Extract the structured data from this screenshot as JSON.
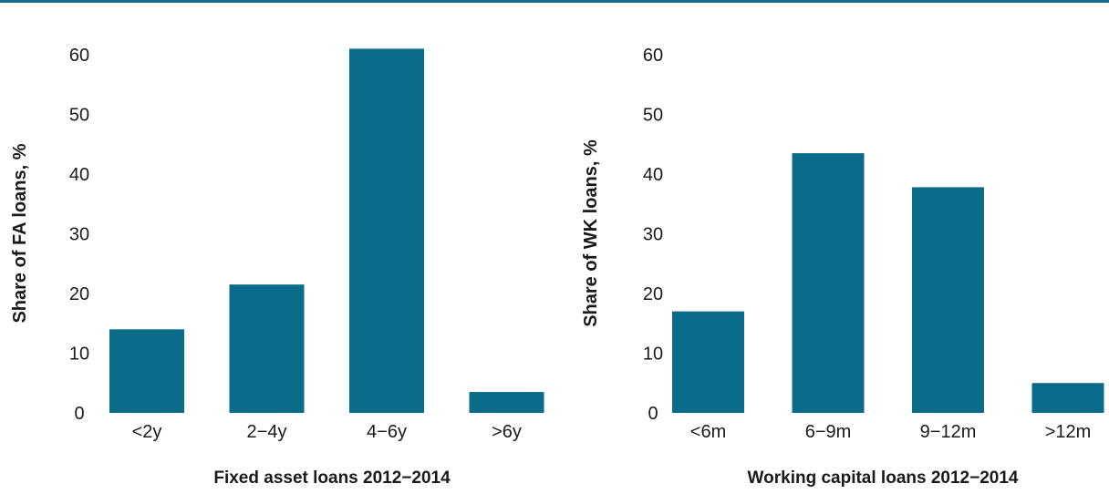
{
  "colors": {
    "bar": "#0b6b8a",
    "rule": "#0b6b8a"
  },
  "chart_data": [
    {
      "type": "bar",
      "title": "",
      "xlabel": "Fixed asset loans 2012−2014",
      "ylabel": "Share of FA loans, %",
      "ylim": [
        0,
        60
      ],
      "yticks": [
        "0",
        "10",
        "20",
        "30",
        "40",
        "50",
        "60"
      ],
      "categories": [
        "<2y",
        "2−4y",
        "4−6y",
        ">6y"
      ],
      "values": [
        14,
        21.5,
        61,
        3.5
      ],
      "grid": false,
      "legend": "none"
    },
    {
      "type": "bar",
      "title": "",
      "xlabel": "Working capital loans 2012−2014",
      "ylabel": "Share of WK loans, %",
      "ylim": [
        0,
        60
      ],
      "yticks": [
        "0",
        "10",
        "20",
        "30",
        "40",
        "50",
        "60"
      ],
      "categories": [
        "<6m",
        "6−9m",
        "9−12m",
        ">12m"
      ],
      "values": [
        17,
        43.5,
        37.8,
        5
      ],
      "grid": false,
      "legend": "none"
    }
  ]
}
